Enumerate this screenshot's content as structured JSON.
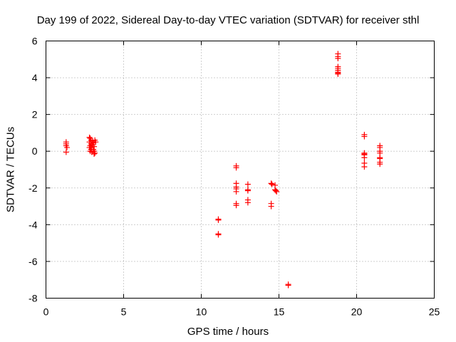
{
  "chart_data": {
    "type": "scatter",
    "title": "Day 199 of 2022, Sidereal Day-to-day VTEC variation (SDTVAR) for receiver sthl",
    "xlabel": "GPS time / hours",
    "ylabel": "SDTVAR / TECUs",
    "xlim": [
      0,
      25
    ],
    "ylim": [
      -8,
      6
    ],
    "xticks": [
      0,
      5,
      10,
      15,
      20,
      25
    ],
    "yticks": [
      -8,
      -6,
      -4,
      -2,
      0,
      2,
      4,
      6
    ],
    "grid": true,
    "marker": "+",
    "color": "#ff0000",
    "series": [
      {
        "name": "SDTVAR",
        "points": [
          [
            1.3,
            0.5
          ],
          [
            1.3,
            0.4
          ],
          [
            1.3,
            0.3
          ],
          [
            1.35,
            0.2
          ],
          [
            1.3,
            -0.05
          ],
          [
            2.8,
            0.75
          ],
          [
            2.85,
            0.7
          ],
          [
            2.9,
            0.6
          ],
          [
            2.8,
            0.5
          ],
          [
            2.9,
            0.4
          ],
          [
            2.85,
            0.3
          ],
          [
            2.8,
            0.2
          ],
          [
            2.9,
            0.1
          ],
          [
            2.85,
            0.0
          ],
          [
            2.95,
            -0.05
          ],
          [
            3.0,
            0.55
          ],
          [
            3.05,
            0.45
          ],
          [
            3.0,
            0.35
          ],
          [
            3.1,
            0.25
          ],
          [
            3.05,
            0.1
          ],
          [
            3.1,
            0.0
          ],
          [
            3.15,
            -0.1
          ],
          [
            3.1,
            -0.15
          ],
          [
            3.2,
            0.5
          ],
          [
            3.15,
            0.6
          ],
          [
            2.95,
            0.2
          ],
          [
            11.1,
            -3.7
          ],
          [
            11.1,
            -3.75
          ],
          [
            11.1,
            -4.5
          ],
          [
            11.1,
            -4.55
          ],
          [
            12.25,
            -0.8
          ],
          [
            12.25,
            -0.9
          ],
          [
            12.25,
            -1.75
          ],
          [
            12.25,
            -1.95
          ],
          [
            12.25,
            -2.05
          ],
          [
            12.25,
            -2.2
          ],
          [
            12.25,
            -2.85
          ],
          [
            12.25,
            -2.95
          ],
          [
            13.0,
            -1.8
          ],
          [
            13.0,
            -2.1
          ],
          [
            13.0,
            -2.15
          ],
          [
            13.0,
            -2.65
          ],
          [
            13.0,
            -2.8
          ],
          [
            14.5,
            -1.75
          ],
          [
            14.55,
            -1.8
          ],
          [
            14.5,
            -2.85
          ],
          [
            14.5,
            -3.0
          ],
          [
            14.75,
            -1.85
          ],
          [
            14.75,
            -2.1
          ],
          [
            14.8,
            -2.15
          ],
          [
            14.85,
            -2.2
          ],
          [
            15.6,
            -7.25
          ],
          [
            15.6,
            -7.3
          ],
          [
            18.8,
            5.3
          ],
          [
            18.8,
            5.15
          ],
          [
            18.8,
            5.05
          ],
          [
            18.8,
            4.6
          ],
          [
            18.8,
            4.5
          ],
          [
            18.8,
            4.4
          ],
          [
            18.8,
            4.3
          ],
          [
            18.8,
            4.25
          ],
          [
            18.8,
            4.2
          ],
          [
            20.5,
            0.9
          ],
          [
            20.5,
            0.8
          ],
          [
            20.5,
            -0.1
          ],
          [
            20.5,
            -0.15
          ],
          [
            20.5,
            -0.2
          ],
          [
            20.5,
            -0.35
          ],
          [
            20.5,
            -0.65
          ],
          [
            20.5,
            -0.85
          ],
          [
            21.5,
            0.3
          ],
          [
            21.5,
            0.2
          ],
          [
            21.5,
            0.0
          ],
          [
            21.5,
            -0.1
          ],
          [
            21.5,
            -0.35
          ],
          [
            21.5,
            -0.4
          ],
          [
            21.5,
            -0.6
          ],
          [
            21.5,
            -0.7
          ]
        ]
      }
    ]
  }
}
